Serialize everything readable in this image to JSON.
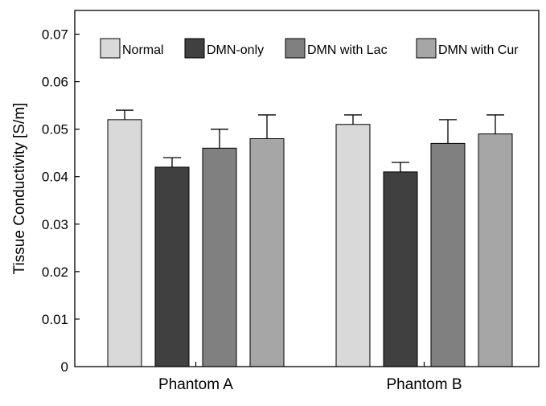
{
  "chart_data": {
    "type": "bar",
    "title": "",
    "xlabel": "",
    "ylabel": "Tissue Conductivity [S/m]",
    "ylim": [
      0,
      0.075
    ],
    "yticks": [
      0,
      0.01,
      0.02,
      0.03,
      0.04,
      0.05,
      0.06,
      0.07
    ],
    "ytick_labels": [
      "0",
      "0.01",
      "0.02",
      "0.03",
      "0.04",
      "0.05",
      "0.06",
      "0.07"
    ],
    "categories": [
      "Phantom A",
      "Phantom B"
    ],
    "series": [
      {
        "name": "Normal",
        "values": [
          0.052,
          0.051
        ],
        "errors": [
          0.002,
          0.002
        ],
        "color": "#d9d9d9"
      },
      {
        "name": "DMN-only",
        "values": [
          0.042,
          0.041
        ],
        "errors": [
          0.002,
          0.002
        ],
        "color": "#404040"
      },
      {
        "name": "DMN with Lac",
        "values": [
          0.046,
          0.047
        ],
        "errors": [
          0.004,
          0.005
        ],
        "color": "#808080"
      },
      {
        "name": "DMN with Cur",
        "values": [
          0.048,
          0.049
        ],
        "errors": [
          0.005,
          0.004
        ],
        "color": "#a6a6a6"
      }
    ],
    "grid": false,
    "legend_position": "top"
  }
}
